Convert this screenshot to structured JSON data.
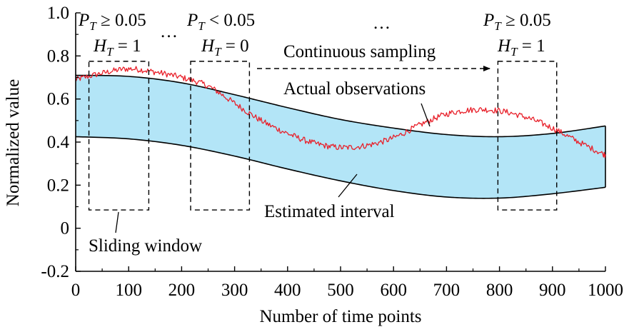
{
  "chart_data": {
    "type": "line",
    "title": "",
    "xlabel": "Number of time points",
    "ylabel": "Normalized value",
    "xlim": [
      0,
      1000
    ],
    "ylim": [
      -0.2,
      1.0
    ],
    "xticks": [
      0,
      100,
      200,
      300,
      400,
      500,
      600,
      700,
      800,
      900,
      1000
    ],
    "yticks": [
      -0.2,
      0,
      0.2,
      0.4,
      0.6,
      0.8,
      1.0
    ],
    "xtick_labels": [
      "0",
      "100",
      "200",
      "300",
      "400",
      "500",
      "600",
      "700",
      "800",
      "900",
      "1000"
    ],
    "ytick_labels": [
      "-0.2",
      "0",
      "0.2",
      "0.4",
      "0.6",
      "0.8",
      "1.0"
    ],
    "grid": false,
    "band": {
      "label": "Estimated interval",
      "color": "#b3e5f7",
      "x": [
        0,
        100,
        200,
        300,
        400,
        500,
        600,
        700,
        800,
        900,
        1000
      ],
      "upper": [
        0.71,
        0.705,
        0.675,
        0.62,
        0.56,
        0.505,
        0.465,
        0.435,
        0.425,
        0.44,
        0.475
      ],
      "lower": [
        0.425,
        0.415,
        0.385,
        0.335,
        0.275,
        0.22,
        0.175,
        0.145,
        0.14,
        0.16,
        0.19
      ]
    },
    "series": [
      {
        "name": "Actual observations",
        "color": "#e8202a",
        "x": [
          0,
          50,
          100,
          150,
          200,
          250,
          300,
          350,
          400,
          450,
          500,
          550,
          600,
          650,
          700,
          750,
          800,
          850,
          900,
          950,
          1000
        ],
        "y": [
          0.69,
          0.72,
          0.74,
          0.725,
          0.7,
          0.66,
          0.58,
          0.5,
          0.44,
          0.395,
          0.375,
          0.385,
          0.42,
          0.48,
          0.53,
          0.55,
          0.545,
          0.515,
          0.465,
          0.4,
          0.34
        ]
      }
    ],
    "windows": [
      {
        "x0": 25,
        "x1": 138,
        "y0": 0.085,
        "y1": 0.775,
        "top_label": "P_T ≥ 0.05",
        "bottom_label": "H_T = 1"
      },
      {
        "x0": 217,
        "x1": 328,
        "y0": 0.085,
        "y1": 0.775,
        "top_label": "P_T < 0.05",
        "bottom_label": "H_T = 0"
      },
      {
        "x0": 797,
        "x1": 908,
        "y0": 0.085,
        "y1": 0.775,
        "top_label": "P_T ≥ 0.05",
        "bottom_label": "H_T = 1"
      }
    ],
    "annotations": {
      "ellipsis_1": "…",
      "ellipsis_2": "…",
      "continuous_sampling": "Continuous sampling",
      "actual_observations": "Actual observations",
      "estimated_interval": "Estimated interval",
      "sliding_window": "Sliding window"
    }
  }
}
